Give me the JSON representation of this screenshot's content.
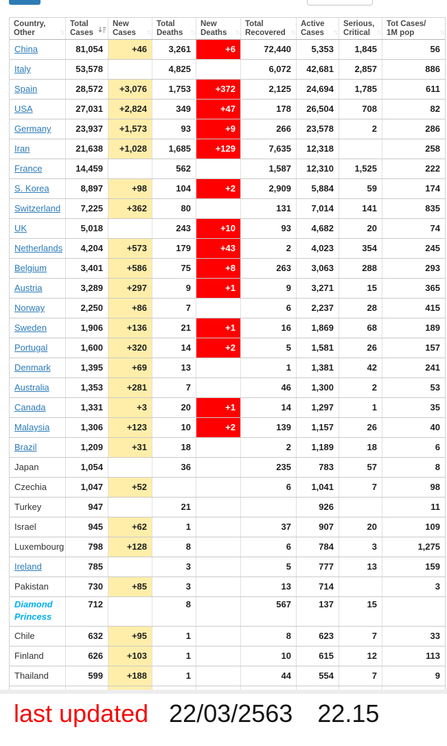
{
  "top": {
    "button": {
      "name": "toolbar-button-fragment"
    },
    "search": {
      "name": "search-input-fragment",
      "value": ""
    }
  },
  "table": {
    "columns": [
      {
        "id": "country",
        "lines": [
          "Country,",
          "Other"
        ],
        "sort": "none"
      },
      {
        "id": "total-cases",
        "lines": [
          "Total",
          "Cases"
        ],
        "sort": "desc"
      },
      {
        "id": "new-cases",
        "lines": [
          "New",
          "Cases"
        ],
        "sort": "none"
      },
      {
        "id": "total-deaths",
        "lines": [
          "Total",
          "Deaths"
        ],
        "sort": "none"
      },
      {
        "id": "new-deaths",
        "lines": [
          "New",
          "Deaths"
        ],
        "sort": "none"
      },
      {
        "id": "total-recovered",
        "lines": [
          "Total",
          "Recovered"
        ],
        "sort": "none"
      },
      {
        "id": "active-cases",
        "lines": [
          "Active",
          "Cases"
        ],
        "sort": "none"
      },
      {
        "id": "serious-critical",
        "lines": [
          "Serious,",
          "Critical"
        ],
        "sort": "none"
      },
      {
        "id": "cases-per-1m",
        "lines": [
          "Tot Cases/",
          "1M pop"
        ],
        "sort": "none"
      }
    ],
    "rows": [
      {
        "country": "China",
        "style": "link",
        "values": [
          "81,054",
          "+46",
          "3,261",
          "+6",
          "72,440",
          "5,353",
          "1,845",
          "56"
        ]
      },
      {
        "country": "Italy",
        "style": "link",
        "values": [
          "53,578",
          "",
          "4,825",
          "",
          "6,072",
          "42,681",
          "2,857",
          "886"
        ]
      },
      {
        "country": "Spain",
        "style": "link",
        "values": [
          "28,572",
          "+3,076",
          "1,753",
          "+372",
          "2,125",
          "24,694",
          "1,785",
          "611"
        ]
      },
      {
        "country": "USA",
        "style": "link",
        "values": [
          "27,031",
          "+2,824",
          "349",
          "+47",
          "178",
          "26,504",
          "708",
          "82"
        ]
      },
      {
        "country": "Germany",
        "style": "link",
        "values": [
          "23,937",
          "+1,573",
          "93",
          "+9",
          "266",
          "23,578",
          "2",
          "286"
        ]
      },
      {
        "country": "Iran",
        "style": "link",
        "values": [
          "21,638",
          "+1,028",
          "1,685",
          "+129",
          "7,635",
          "12,318",
          "",
          "258"
        ]
      },
      {
        "country": "France",
        "style": "link",
        "values": [
          "14,459",
          "",
          "562",
          "",
          "1,587",
          "12,310",
          "1,525",
          "222"
        ]
      },
      {
        "country": "S. Korea",
        "style": "link",
        "values": [
          "8,897",
          "+98",
          "104",
          "+2",
          "2,909",
          "5,884",
          "59",
          "174"
        ]
      },
      {
        "country": "Switzerland",
        "style": "link",
        "values": [
          "7,225",
          "+362",
          "80",
          "",
          "131",
          "7,014",
          "141",
          "835"
        ]
      },
      {
        "country": "UK",
        "style": "link",
        "values": [
          "5,018",
          "",
          "243",
          "+10",
          "93",
          "4,682",
          "20",
          "74"
        ]
      },
      {
        "country": "Netherlands",
        "style": "link",
        "values": [
          "4,204",
          "+573",
          "179",
          "+43",
          "2",
          "4,023",
          "354",
          "245"
        ]
      },
      {
        "country": "Belgium",
        "style": "link",
        "values": [
          "3,401",
          "+586",
          "75",
          "+8",
          "263",
          "3,063",
          "288",
          "293"
        ]
      },
      {
        "country": "Austria",
        "style": "link",
        "values": [
          "3,289",
          "+297",
          "9",
          "+1",
          "9",
          "3,271",
          "15",
          "365"
        ]
      },
      {
        "country": "Norway",
        "style": "link",
        "values": [
          "2,250",
          "+86",
          "7",
          "",
          "6",
          "2,237",
          "28",
          "415"
        ]
      },
      {
        "country": "Sweden",
        "style": "link",
        "values": [
          "1,906",
          "+136",
          "21",
          "+1",
          "16",
          "1,869",
          "68",
          "189"
        ]
      },
      {
        "country": "Portugal",
        "style": "link",
        "values": [
          "1,600",
          "+320",
          "14",
          "+2",
          "5",
          "1,581",
          "26",
          "157"
        ]
      },
      {
        "country": "Denmark",
        "style": "link",
        "values": [
          "1,395",
          "+69",
          "13",
          "",
          "1",
          "1,381",
          "42",
          "241"
        ]
      },
      {
        "country": "Australia",
        "style": "link",
        "values": [
          "1,353",
          "+281",
          "7",
          "",
          "46",
          "1,300",
          "2",
          "53"
        ]
      },
      {
        "country": "Canada",
        "style": "link",
        "values": [
          "1,331",
          "+3",
          "20",
          "+1",
          "14",
          "1,297",
          "1",
          "35"
        ]
      },
      {
        "country": "Malaysia",
        "style": "link",
        "values": [
          "1,306",
          "+123",
          "10",
          "+2",
          "139",
          "1,157",
          "26",
          "40"
        ]
      },
      {
        "country": "Brazil",
        "style": "link",
        "values": [
          "1,209",
          "+31",
          "18",
          "",
          "2",
          "1,189",
          "18",
          "6"
        ]
      },
      {
        "country": "Japan",
        "style": "plain",
        "values": [
          "1,054",
          "",
          "36",
          "",
          "235",
          "783",
          "57",
          "8"
        ]
      },
      {
        "country": "Czechia",
        "style": "plain",
        "values": [
          "1,047",
          "+52",
          "",
          "",
          "6",
          "1,041",
          "7",
          "98"
        ]
      },
      {
        "country": "Turkey",
        "style": "plain",
        "values": [
          "947",
          "",
          "21",
          "",
          "",
          "926",
          "",
          "11"
        ]
      },
      {
        "country": "Israel",
        "style": "plain",
        "values": [
          "945",
          "+62",
          "1",
          "",
          "37",
          "907",
          "20",
          "109"
        ]
      },
      {
        "country": "Luxembourg",
        "style": "plain",
        "values": [
          "798",
          "+128",
          "8",
          "",
          "6",
          "784",
          "3",
          "1,275"
        ]
      },
      {
        "country": "Ireland",
        "style": "link",
        "values": [
          "785",
          "",
          "3",
          "",
          "5",
          "777",
          "13",
          "159"
        ]
      },
      {
        "country": "Pakistan",
        "style": "plain",
        "values": [
          "730",
          "+85",
          "3",
          "",
          "13",
          "714",
          "",
          "3"
        ]
      },
      {
        "country": "Diamond Princess",
        "style": "special",
        "values": [
          "712",
          "",
          "8",
          "",
          "567",
          "137",
          "15",
          ""
        ]
      },
      {
        "country": "Chile",
        "style": "plain",
        "values": [
          "632",
          "+95",
          "1",
          "",
          "8",
          "623",
          "7",
          "33"
        ]
      },
      {
        "country": "Finland",
        "style": "plain",
        "values": [
          "626",
          "+103",
          "1",
          "",
          "10",
          "615",
          "12",
          "113"
        ]
      },
      {
        "country": "Thailand",
        "style": "plain",
        "values": [
          "599",
          "+188",
          "1",
          "",
          "44",
          "554",
          "7",
          "9"
        ]
      }
    ]
  },
  "footer": {
    "label": "last updated",
    "date": "22/03/2563",
    "time": "22.15"
  },
  "colors": {
    "new_cases_bg": "#FFEEAA",
    "new_deaths_bg": "#FE0000",
    "country_link": "#2B7BB9",
    "special_row_text": "#00AEEF",
    "top_button": "#2E7CB5",
    "last_updated_label": "#F40B0B"
  }
}
